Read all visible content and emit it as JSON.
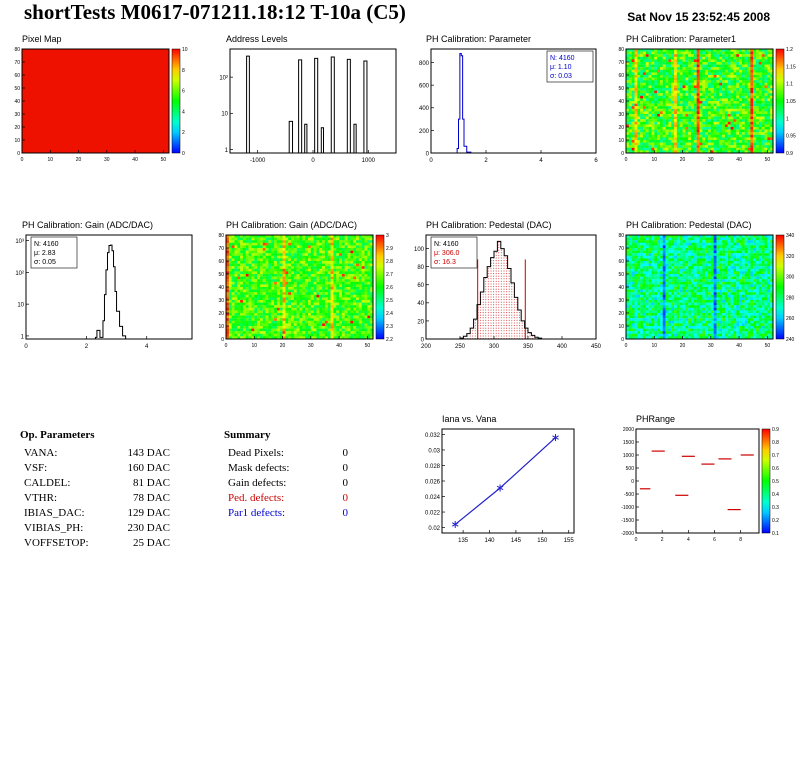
{
  "header": {
    "title": "shortTests M0617-071211.18:12 T-10a (C5)",
    "date": "Sat Nov 15 23:52:45 2008"
  },
  "op_parameters": {
    "heading": "Op. Parameters",
    "rows": [
      {
        "label": "VANA:",
        "value": "143 DAC"
      },
      {
        "label": "VSF:",
        "value": "160 DAC"
      },
      {
        "label": "CALDEL:",
        "value": "81 DAC"
      },
      {
        "label": "VTHR:",
        "value": "78 DAC"
      },
      {
        "label": "IBIAS_DAC:",
        "value": "129 DAC"
      },
      {
        "label": "VIBIAS_PH:",
        "value": "230 DAC"
      },
      {
        "label": "VOFFSETOP:",
        "value": "25 DAC"
      }
    ]
  },
  "summary": {
    "heading": "Summary",
    "rows": [
      {
        "label": "Dead Pixels:",
        "value": "0"
      },
      {
        "label": "Mask defects:",
        "value": "0"
      },
      {
        "label": "Gain defects:",
        "value": "0"
      },
      {
        "label": "Ped. defects:",
        "value": "0",
        "color": "#cc0000"
      },
      {
        "label": "Par1 defects:",
        "value": "0",
        "color": "#0000cc"
      }
    ]
  },
  "chart_data": {
    "pixel_map": {
      "type": "heatmap",
      "title": "Pixel Map",
      "x_range": [
        0,
        52
      ],
      "y_range": [
        0,
        80
      ],
      "x_ticks": [
        0,
        10,
        20,
        30,
        40,
        50
      ],
      "y_ticks": [
        0,
        10,
        20,
        30,
        40,
        50,
        60,
        70,
        80
      ],
      "tick_font": 5,
      "margins": {
        "l": 14
      },
      "solid_fill": "#ee1100",
      "colorbar": {
        "labels": [
          "10",
          "8",
          "6",
          "4",
          "2",
          "0"
        ]
      }
    },
    "address_levels": {
      "type": "hist-bars",
      "title": "Address Levels",
      "logy": true,
      "x_range": [
        -1500,
        1500
      ],
      "x_ticks": [
        -1000,
        0,
        1000
      ],
      "y_range": [
        0.8,
        600
      ],
      "y_ticks": [
        1,
        10,
        100
      ],
      "y_tick_labels": [
        "1",
        "10",
        "10²"
      ],
      "tick_font": 6,
      "margins": {
        "l": 18,
        "r": 8
      },
      "color": "#000000",
      "bars": [
        [
          -1200,
          50,
          380
        ],
        [
          -430,
          60,
          6
        ],
        [
          -260,
          55,
          300
        ],
        [
          -150,
          40,
          5
        ],
        [
          30,
          55,
          330
        ],
        [
          150,
          40,
          4
        ],
        [
          330,
          55,
          360
        ],
        [
          620,
          55,
          310
        ],
        [
          740,
          40,
          5
        ],
        [
          920,
          55,
          280
        ]
      ]
    },
    "ph_parameter_hist": {
      "type": "hist-line",
      "title": "PH Calibration: Parameter",
      "x_range": [
        0,
        6
      ],
      "x_ticks": [
        0,
        2,
        4,
        6
      ],
      "y_range": [
        0,
        920
      ],
      "y_ticks": [
        0,
        200,
        400,
        600,
        800
      ],
      "tick_font": 6,
      "margins": {
        "l": 19,
        "r": 8
      },
      "color": "#0000cc",
      "points": [
        [
          0.85,
          0
        ],
        [
          0.95,
          40
        ],
        [
          1.0,
          300
        ],
        [
          1.05,
          880
        ],
        [
          1.1,
          860
        ],
        [
          1.15,
          300
        ],
        [
          1.2,
          60
        ],
        [
          1.3,
          8
        ],
        [
          1.45,
          0
        ]
      ],
      "stats": {
        "corner": "tr",
        "lines": [
          {
            "text": "N: 4160",
            "color": "#0000cc"
          },
          {
            "text": "μ: 1.10",
            "color": "#0000cc"
          },
          {
            "text": "σ: 0.03",
            "color": "#0000cc"
          }
        ]
      }
    },
    "ph_parameter1_map": {
      "type": "heatmap",
      "title": "PH Calibration: Parameter1",
      "x_range": [
        0,
        52
      ],
      "y_range": [
        0,
        80
      ],
      "x_ticks": [
        0,
        10,
        20,
        30,
        40,
        50
      ],
      "y_ticks": [
        0,
        10,
        20,
        30,
        40,
        50,
        60,
        70,
        80
      ],
      "tick_font": 5,
      "margins": {
        "l": 14
      },
      "noise": {
        "seed": 7,
        "base": 0.52,
        "amp": 0.38,
        "hot_cols": [
          25,
          44
        ],
        "warm_cols": [
          3,
          17
        ],
        "hot_cell_prob": 0.02
      },
      "colorbar": {
        "labels": [
          "1.2",
          "1.15",
          "1.1",
          "1.05",
          "1",
          "0.95",
          "0.9"
        ]
      }
    },
    "gain_hist": {
      "type": "hist-line",
      "title": "PH Calibration: Gain (ADC/DAC)",
      "logy": true,
      "x_range": [
        0,
        5.5
      ],
      "x_ticks": [
        0,
        2,
        4
      ],
      "y_range": [
        0.8,
        1500
      ],
      "y_ticks": [
        1,
        10,
        100,
        1000
      ],
      "y_tick_labels": [
        "1",
        "10",
        "10²",
        "10³"
      ],
      "tick_font": 6,
      "margins": {
        "l": 18,
        "r": 8
      },
      "color": "#000000",
      "points": [
        [
          2.3,
          0.9
        ],
        [
          2.35,
          1.5
        ],
        [
          2.45,
          0.9
        ],
        [
          2.55,
          3
        ],
        [
          2.6,
          20
        ],
        [
          2.65,
          120
        ],
        [
          2.7,
          420
        ],
        [
          2.75,
          700
        ],
        [
          2.8,
          720
        ],
        [
          2.85,
          480
        ],
        [
          2.9,
          150
        ],
        [
          2.95,
          25
        ],
        [
          3.0,
          6
        ],
        [
          3.1,
          2
        ],
        [
          3.2,
          1
        ],
        [
          3.3,
          0.9
        ]
      ],
      "stats": {
        "corner": "tl",
        "lines": [
          {
            "text": "N: 4160",
            "color": "#000000"
          },
          {
            "text": "μ: 2.83",
            "color": "#000000"
          },
          {
            "text": "σ: 0.05",
            "color": "#000000"
          }
        ]
      }
    },
    "gain_map": {
      "type": "heatmap",
      "title": "PH Calibration: Gain (ADC/DAC)",
      "x_range": [
        0,
        52
      ],
      "y_range": [
        0,
        80
      ],
      "x_ticks": [
        0,
        10,
        20,
        30,
        40,
        50
      ],
      "y_ticks": [
        0,
        10,
        20,
        30,
        40,
        50,
        60,
        70,
        80
      ],
      "tick_font": 5,
      "margins": {
        "l": 14
      },
      "noise": {
        "seed": 13,
        "base": 0.55,
        "amp": 0.3,
        "hot_cols": [
          0
        ],
        "warm_cols": [
          20,
          37
        ],
        "hot_cell_prob": 0.015
      },
      "colorbar": {
        "labels": [
          "3",
          "2.9",
          "2.8",
          "2.7",
          "2.6",
          "2.5",
          "2.4",
          "2.3",
          "2.2"
        ]
      }
    },
    "pedestal_hist": {
      "type": "hist-filled",
      "title": "PH Calibration: Pedestal (DAC)",
      "x_range": [
        200,
        450
      ],
      "x_ticks": [
        200,
        250,
        300,
        350,
        400,
        450
      ],
      "y_range": [
        0,
        115
      ],
      "y_ticks": [
        0,
        20,
        40,
        60,
        80,
        100
      ],
      "tick_font": 6,
      "margins": {
        "l": 14,
        "r": 8
      },
      "color": "#000000",
      "fill_color": "#cc0000",
      "points": [
        [
          250,
          1
        ],
        [
          255,
          3
        ],
        [
          260,
          6
        ],
        [
          265,
          12
        ],
        [
          270,
          22
        ],
        [
          275,
          38
        ],
        [
          280,
          52
        ],
        [
          285,
          68
        ],
        [
          290,
          80
        ],
        [
          295,
          90
        ],
        [
          300,
          97
        ],
        [
          305,
          108
        ],
        [
          310,
          100
        ],
        [
          315,
          92
        ],
        [
          320,
          78
        ],
        [
          325,
          62
        ],
        [
          330,
          46
        ],
        [
          335,
          32
        ],
        [
          340,
          20
        ],
        [
          345,
          12
        ],
        [
          350,
          7
        ],
        [
          355,
          4
        ],
        [
          360,
          2
        ],
        [
          365,
          1
        ],
        [
          370,
          0
        ]
      ],
      "vlines": [
        {
          "x": 276,
          "h": 88
        },
        {
          "x": 346,
          "h": 88
        }
      ],
      "stats": {
        "corner": "tl",
        "lines": [
          {
            "text": "N: 4160",
            "color": "#000000"
          },
          {
            "text": "μ: 306.0",
            "color": "#cc0000"
          },
          {
            "text": "σ: 16.3",
            "color": "#cc0000"
          }
        ]
      }
    },
    "pedestal_map": {
      "type": "heatmap",
      "title": "PH Calibration: Pedestal (DAC)",
      "x_range": [
        0,
        52
      ],
      "y_range": [
        0,
        80
      ],
      "x_ticks": [
        0,
        10,
        20,
        30,
        40,
        50
      ],
      "y_ticks": [
        0,
        10,
        20,
        30,
        40,
        50,
        60,
        70,
        80
      ],
      "tick_font": 5,
      "margins": {
        "l": 14
      },
      "noise": {
        "seed": 29,
        "base": 0.38,
        "amp": 0.36,
        "cold_cols": [
          13,
          31
        ],
        "hot_cell_prob": 0
      },
      "colorbar": {
        "labels": [
          "340",
          "320",
          "300",
          "280",
          "260",
          "240"
        ]
      }
    },
    "iana_vana": {
      "type": "line-markers",
      "title": "Iana vs. Vana",
      "x_range": [
        131,
        156
      ],
      "x_ticks": [
        135,
        140,
        145,
        150,
        155
      ],
      "y_range": [
        0.0193,
        0.0327
      ],
      "y_ticks": [
        0.02,
        0.022,
        0.024,
        0.026,
        0.028,
        0.03,
        0.032
      ],
      "y_tick_labels": [
        "0.02",
        "0.022",
        "0.024",
        "0.026",
        "0.028",
        "0.03",
        "0.032"
      ],
      "tick_font": 6,
      "margins": {
        "l": 30,
        "r": 6
      },
      "color": "#2222cc",
      "points": [
        [
          133.5,
          0.0204
        ],
        [
          142,
          0.0251
        ],
        [
          152.5,
          0.0316
        ]
      ]
    },
    "ph_range": {
      "type": "segments",
      "title": "PHRange",
      "x_range": [
        0,
        9.4
      ],
      "x_ticks": [
        0,
        2,
        4,
        6,
        8
      ],
      "y_range": [
        -2000,
        2000
      ],
      "y_ticks": [
        2000,
        1500,
        1000,
        500,
        0,
        -500,
        -1000,
        -1500,
        -2000
      ],
      "tick_font": 5,
      "margins": {
        "l": 24
      },
      "color": "#cc0000",
      "segments": [
        [
          1.2,
          2.2,
          1150
        ],
        [
          3.5,
          4.5,
          950
        ],
        [
          5.0,
          6.0,
          650
        ],
        [
          6.3,
          7.3,
          850
        ],
        [
          8.0,
          9.0,
          1000
        ],
        [
          0.3,
          1.1,
          -300
        ],
        [
          3.0,
          4.0,
          -550
        ],
        [
          7.0,
          8.0,
          -1100
        ]
      ],
      "colorbar": {
        "labels": [
          "0.9",
          "0.8",
          "0.7",
          "0.6",
          "0.5",
          "0.4",
          "0.3",
          "0.2",
          "0.1"
        ]
      }
    }
  }
}
